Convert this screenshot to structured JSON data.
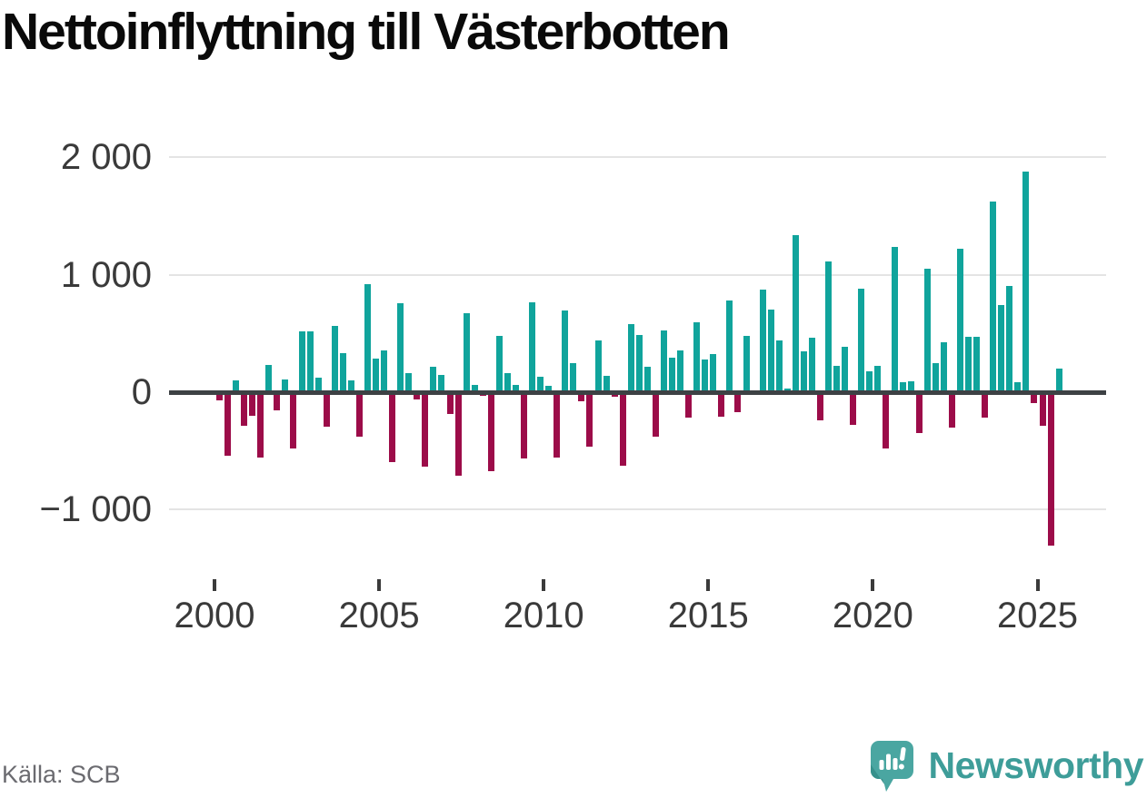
{
  "title": "Nettoinflyttning till Västerbotten",
  "source": "Källa: SCB",
  "branding": {
    "wordmark": "Newsworthy",
    "icon": "newsworthy-logo-icon"
  },
  "colors": {
    "positive_bar": "#10a49c",
    "negative_bar": "#9c0c49",
    "zero_axis": "#3d4144",
    "gridline": "#e4e4e4",
    "axis_text": "#3a3a3a",
    "title_text": "#0a0a0a",
    "source_text": "#6b6b70",
    "brand_teal": "#3e9d99",
    "logo_bubble": "#4aa6a1",
    "logo_fold": "#37918c"
  },
  "chart_data": {
    "type": "bar",
    "title": "Nettoinflyttning till Västerbotten",
    "frequency": "quarterly",
    "start_period": "2000-Q1",
    "end_period": "2025-Q3",
    "grid": "horizontal",
    "legend": "none",
    "ylim": [
      -1450,
      2150
    ],
    "y_ticks": [
      {
        "value": 2000,
        "label": "2 000"
      },
      {
        "value": 1000,
        "label": "1 000"
      },
      {
        "value": 0,
        "label": "0"
      },
      {
        "value": -1000,
        "label": "−1 000"
      }
    ],
    "x_ticks": [
      {
        "year": 2000,
        "label": "2000"
      },
      {
        "year": 2005,
        "label": "2005"
      },
      {
        "year": 2010,
        "label": "2010"
      },
      {
        "year": 2015,
        "label": "2015"
      },
      {
        "year": 2020,
        "label": "2020"
      },
      {
        "year": 2025,
        "label": "2025"
      }
    ],
    "series": [
      {
        "year": 2000,
        "quarters": [
          -69,
          -540,
          98,
          -283
        ]
      },
      {
        "year": 2001,
        "quarters": [
          -198,
          -558,
          232,
          -154
        ]
      },
      {
        "year": 2002,
        "quarters": [
          111,
          -481,
          515,
          520
        ]
      },
      {
        "year": 2003,
        "quarters": [
          121,
          -296,
          566,
          334
        ]
      },
      {
        "year": 2004,
        "quarters": [
          103,
          -378,
          919,
          283
        ]
      },
      {
        "year": 2005,
        "quarters": [
          353,
          -592,
          754,
          160
        ]
      },
      {
        "year": 2006,
        "quarters": [
          -64,
          -635,
          219,
          147
        ]
      },
      {
        "year": 2007,
        "quarters": [
          -188,
          -713,
          669,
          64
        ]
      },
      {
        "year": 2008,
        "quarters": [
          -33,
          -669,
          476,
          160
        ]
      },
      {
        "year": 2009,
        "quarters": [
          64,
          -564,
          769,
          128
        ]
      },
      {
        "year": 2010,
        "quarters": [
          51,
          -556,
          692,
          249
        ]
      },
      {
        "year": 2011,
        "quarters": [
          -77,
          -465,
          444,
          141
        ]
      },
      {
        "year": 2012,
        "quarters": [
          -40,
          -628,
          577,
          490
        ]
      },
      {
        "year": 2013,
        "quarters": [
          213,
          -377,
          526,
          295
        ]
      },
      {
        "year": 2014,
        "quarters": [
          359,
          -218,
          597,
          282
        ]
      },
      {
        "year": 2015,
        "quarters": [
          322,
          -206,
          780,
          -172
        ]
      },
      {
        "year": 2016,
        "quarters": [
          476,
          0,
          875,
          700
        ]
      },
      {
        "year": 2017,
        "quarters": [
          437,
          31,
          1340,
          347
        ]
      },
      {
        "year": 2018,
        "quarters": [
          460,
          -240,
          1115,
          224
        ]
      },
      {
        "year": 2019,
        "quarters": [
          390,
          -280,
          885,
          180
        ]
      },
      {
        "year": 2020,
        "quarters": [
          228,
          -479,
          1235,
          85
        ]
      },
      {
        "year": 2021,
        "quarters": [
          90,
          -351,
          1050,
          249
        ]
      },
      {
        "year": 2022,
        "quarters": [
          428,
          -300,
          1220,
          469
        ]
      },
      {
        "year": 2023,
        "quarters": [
          469,
          -213,
          1620,
          744
        ]
      },
      {
        "year": 2024,
        "quarters": [
          903,
          85,
          1880,
          -93
        ]
      },
      {
        "year": 2025,
        "quarters": [
          -286,
          -1310,
          201
        ]
      }
    ]
  }
}
